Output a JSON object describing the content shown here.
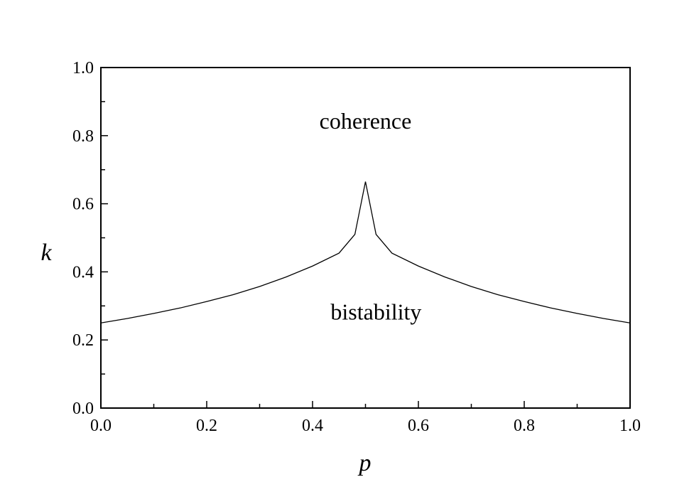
{
  "chart_data": {
    "type": "line",
    "title": "",
    "xlabel": "p",
    "ylabel": "k",
    "xlim": [
      0.0,
      1.0
    ],
    "ylim": [
      0.0,
      1.0
    ],
    "grid": false,
    "x_ticks": [
      "0.0",
      "0.2",
      "0.4",
      "0.6",
      "0.8",
      "1.0"
    ],
    "y_ticks": [
      "0.0",
      "0.2",
      "0.4",
      "0.6",
      "0.8",
      "1.0"
    ],
    "annotations": [
      {
        "text": "coherence",
        "x": 0.5,
        "y": 0.82
      },
      {
        "text": "bistability",
        "x": 0.52,
        "y": 0.26
      }
    ],
    "series": [
      {
        "x": [
          0.0,
          0.05,
          0.1,
          0.15,
          0.2,
          0.25,
          0.3,
          0.35,
          0.4,
          0.45,
          0.48,
          0.5,
          0.52,
          0.55,
          0.6,
          0.65,
          0.7,
          0.75,
          0.8,
          0.85,
          0.9,
          0.95,
          1.0
        ],
        "y": [
          0.25,
          0.263,
          0.278,
          0.294,
          0.313,
          0.333,
          0.357,
          0.385,
          0.417,
          0.455,
          0.51,
          0.665,
          0.51,
          0.455,
          0.417,
          0.385,
          0.357,
          0.333,
          0.313,
          0.294,
          0.278,
          0.263,
          0.25
        ]
      }
    ]
  }
}
